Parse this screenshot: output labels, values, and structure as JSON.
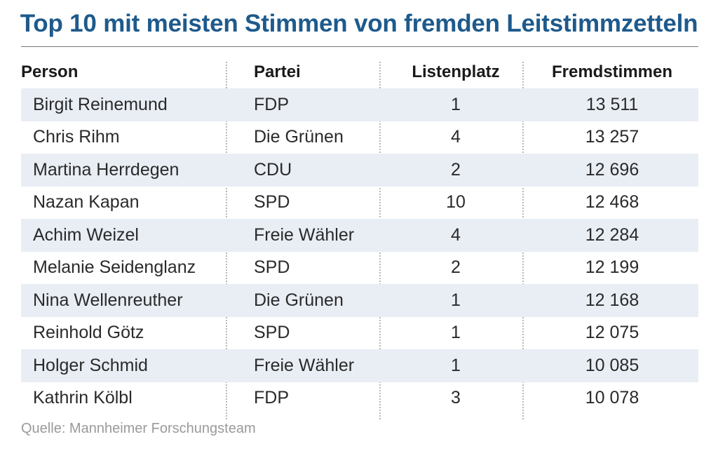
{
  "chart_data": {
    "type": "table",
    "title": "Top 10 mit meisten Stimmen von fremden Leitstimmzetteln",
    "columns": [
      "Person",
      "Partei",
      "Listenplatz",
      "Fremdstimmen"
    ],
    "rows": [
      {
        "person": "Birgit Reinemund",
        "partei": "FDP",
        "listenplatz": "1",
        "fremdstimmen": "13 511"
      },
      {
        "person": "Chris Rihm",
        "partei": "Die Grünen",
        "listenplatz": "4",
        "fremdstimmen": "13 257"
      },
      {
        "person": "Martina Herrdegen",
        "partei": "CDU",
        "listenplatz": "2",
        "fremdstimmen": "12 696"
      },
      {
        "person": "Nazan Kapan",
        "partei": "SPD",
        "listenplatz": "10",
        "fremdstimmen": "12 468"
      },
      {
        "person": "Achim Weizel",
        "partei": "Freie Wähler",
        "listenplatz": "4",
        "fremdstimmen": "12 284"
      },
      {
        "person": "Melanie Seidenglanz",
        "partei": "SPD",
        "listenplatz": "2",
        "fremdstimmen": "12 199"
      },
      {
        "person": "Nina Wellenreuther",
        "partei": "Die Grünen",
        "listenplatz": "1",
        "fremdstimmen": "12 168"
      },
      {
        "person": "Reinhold Götz",
        "partei": "SPD",
        "listenplatz": "1",
        "fremdstimmen": "12 075"
      },
      {
        "person": "Holger Schmid",
        "partei": "Freie Wähler",
        "listenplatz": "1",
        "fremdstimmen": "10 085"
      },
      {
        "person": "Kathrin Kölbl",
        "partei": "FDP",
        "listenplatz": "3",
        "fremdstimmen": "10 078"
      }
    ],
    "source": "Quelle: Mannheimer Forschungsteam",
    "colors": {
      "title": "#1e5a8c",
      "row_shade": "#e9eef5"
    }
  }
}
